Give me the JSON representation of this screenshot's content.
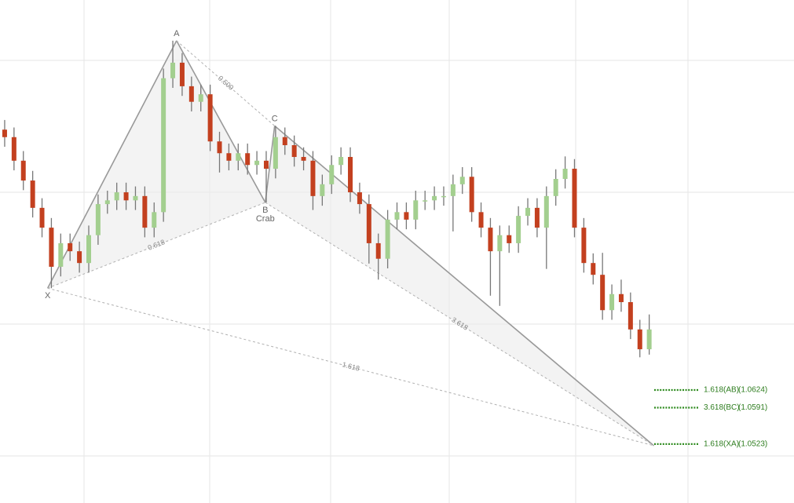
{
  "chart_data": {
    "type": "candlestick",
    "xlim": [
      -0.5,
      84.5
    ],
    "ylim": [
      1.0413,
      1.1352
    ],
    "up_color": "#a3cf8f",
    "down_color": "#c3401f",
    "open": [
      1.111,
      1.1096,
      1.1052,
      1.1015,
      1.0964,
      1.0927,
      1.0854,
      1.0898,
      1.0883,
      1.0861,
      1.0913,
      1.0971,
      1.0978,
      1.0993,
      1.0978,
      1.0986,
      1.0927,
      1.0956,
      1.1206,
      1.1235,
      1.1191,
      1.1162,
      1.1176,
      1.1088,
      1.1066,
      1.1052,
      1.1066,
      1.1044,
      1.1052,
      1.1037,
      1.1096,
      1.1081,
      1.1059,
      1.1052,
      1.0986,
      1.1008,
      1.1044,
      1.1059,
      1.0993,
      1.0971,
      1.0898,
      1.0869,
      1.0942,
      1.0956,
      1.0942,
      1.0978,
      1.0978,
      1.0986,
      1.0986,
      1.1008,
      1.1022,
      1.0956,
      1.0927,
      1.0883,
      1.0913,
      1.0898,
      1.0949,
      1.0964,
      1.0927,
      1.0986,
      1.1018,
      1.1037,
      1.0927,
      1.0861,
      1.0839,
      1.0773,
      1.0803,
      1.0788,
      1.0737,
      1.07
    ],
    "high": [
      1.1128,
      1.1114,
      1.107,
      1.1033,
      1.0982,
      1.0945,
      1.0916,
      1.0916,
      1.0901,
      1.0931,
      1.0989,
      1.0996,
      1.1011,
      1.1011,
      1.1004,
      1.1004,
      1.0974,
      1.1224,
      1.1276,
      1.1253,
      1.1209,
      1.1194,
      1.1194,
      1.1106,
      1.1084,
      1.1084,
      1.1084,
      1.107,
      1.107,
      1.1117,
      1.1114,
      1.1099,
      1.1077,
      1.107,
      1.1026,
      1.1062,
      1.1077,
      1.1077,
      1.1011,
      1.0989,
      1.0916,
      1.096,
      1.0974,
      1.0974,
      1.0996,
      1.0996,
      1.1004,
      1.1004,
      1.1026,
      1.104,
      1.104,
      1.0974,
      1.0945,
      1.0931,
      1.0931,
      1.0967,
      1.0982,
      1.0982,
      1.1004,
      1.1036,
      1.106,
      1.1055,
      1.0945,
      1.0879,
      1.088,
      1.0821,
      1.083,
      1.0806,
      1.0755,
      1.0765
    ],
    "low": [
      1.1078,
      1.1034,
      1.0997,
      1.0946,
      1.0909,
      1.0814,
      1.0836,
      1.0865,
      1.0843,
      1.0843,
      1.0895,
      1.0953,
      1.096,
      1.096,
      1.096,
      1.0909,
      1.0909,
      1.0938,
      1.1188,
      1.1173,
      1.1144,
      1.1144,
      1.107,
      1.103,
      1.1034,
      1.1034,
      1.1026,
      1.1026,
      1.0974,
      1.1019,
      1.1063,
      1.1041,
      1.1034,
      1.096,
      1.0968,
      1.099,
      1.1026,
      1.0975,
      1.0953,
      1.086,
      1.083,
      1.0851,
      1.0924,
      1.0924,
      1.0924,
      1.096,
      1.096,
      1.0968,
      1.092,
      1.099,
      1.0938,
      1.0909,
      1.08,
      1.0781,
      1.088,
      1.088,
      1.0931,
      1.0909,
      1.085,
      1.0968,
      1.1,
      1.0909,
      1.0843,
      1.0821,
      1.0755,
      1.0755,
      1.077,
      1.0719,
      1.0685,
      1.069
    ],
    "close": [
      1.1096,
      1.1052,
      1.1015,
      1.0964,
      1.0927,
      1.0854,
      1.0898,
      1.0883,
      1.0861,
      1.0913,
      1.0971,
      1.0978,
      1.0993,
      1.0978,
      1.0986,
      1.0927,
      1.0956,
      1.1206,
      1.1235,
      1.1191,
      1.1162,
      1.1176,
      1.1088,
      1.1066,
      1.1052,
      1.1066,
      1.1044,
      1.1052,
      1.1037,
      1.1096,
      1.1081,
      1.1059,
      1.1052,
      1.0986,
      1.1008,
      1.1044,
      1.1059,
      1.0993,
      1.0971,
      1.0898,
      1.0869,
      1.0942,
      1.0956,
      1.0942,
      1.0978,
      1.0978,
      1.0986,
      1.0986,
      1.1008,
      1.1022,
      1.0956,
      1.0927,
      1.0883,
      1.0913,
      1.0898,
      1.0949,
      1.0964,
      1.0927,
      1.0986,
      1.1018,
      1.1037,
      1.0927,
      1.0861,
      1.0839,
      1.0773,
      1.0803,
      1.0788,
      1.0737,
      1.07,
      1.0737
    ],
    "pattern": {
      "name": "Crab",
      "points": [
        {
          "name": "X",
          "x": 4.6,
          "value": 1.0814
        },
        {
          "name": "A",
          "x": 18.4,
          "value": 1.1276
        },
        {
          "name": "B",
          "x": 27.9,
          "value": 1.0974
        },
        {
          "name": "C",
          "x": 28.9,
          "value": 1.1117
        },
        {
          "x": 69.5,
          "value": 1.052
        }
      ],
      "ratios": [
        "0.500",
        "0.618",
        "3.618",
        "1.618"
      ]
    },
    "levels": [
      {
        "name": "1.618(AB)",
        "value": 1.0624,
        "label": "(1.0624)"
      },
      {
        "name": "3.618(BC)",
        "value": 1.0591,
        "label": "(1.0591)"
      },
      {
        "name": "1.618(XA)",
        "value": 1.0523,
        "label": "(1.0523)"
      }
    ]
  }
}
